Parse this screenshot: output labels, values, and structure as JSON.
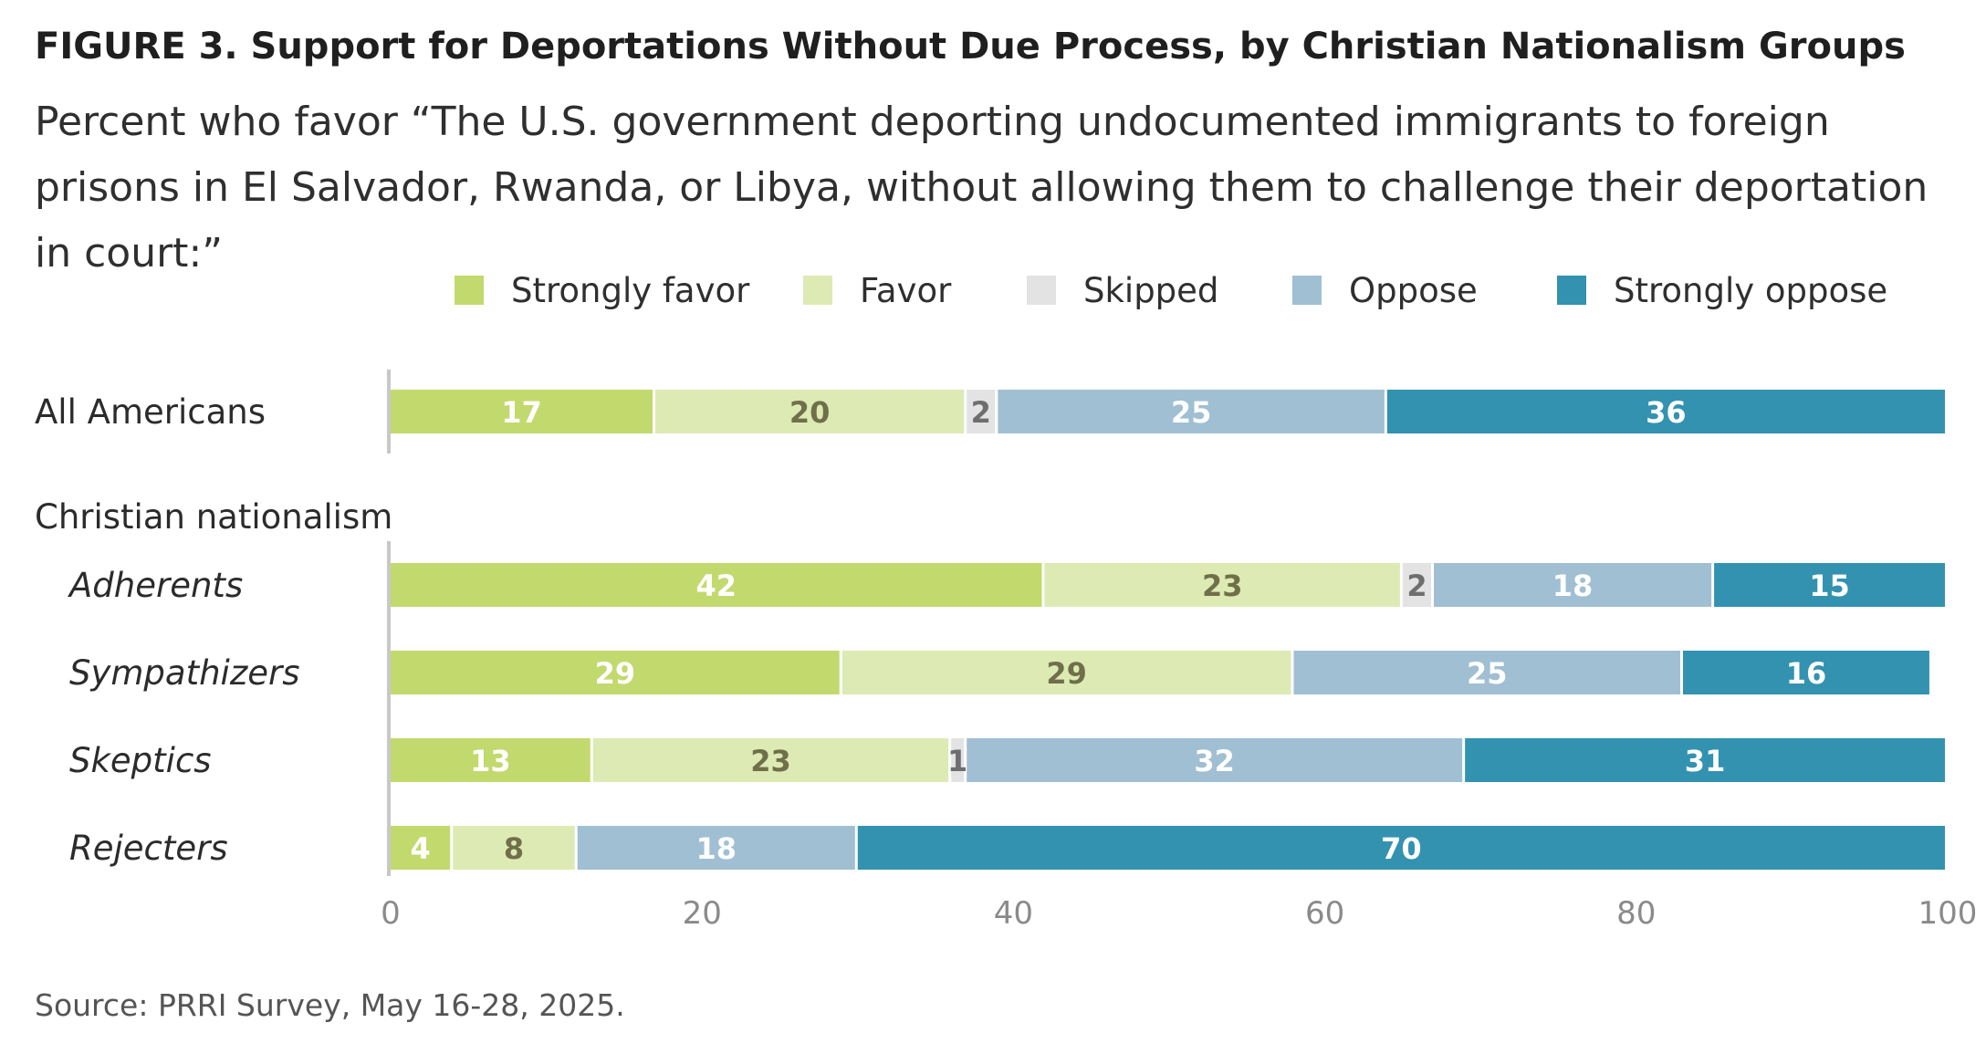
{
  "title": "FIGURE 3.  Support for Deportations Without Due Process, by Christian Nationalism Groups",
  "subtitle": "Percent who favor “The U.S. government deporting undocumented immigrants to foreign prisons in El Salvador, Rwanda, or Libya, without allowing them to challenge their deportation in court:”",
  "source": "Source: PRRI Survey, May 16-28, 2025.",
  "colors": {
    "strongly_favor": "#c2d96e",
    "favor": "#ddeab4",
    "skipped": "#e3e3e3",
    "oppose": "#a0bfd3",
    "strongly_oppose": "#3392b0",
    "axis": "#c8c8c8",
    "tick": "#8a8a8a"
  },
  "chart_data": {
    "type": "bar",
    "orientation": "horizontal",
    "stacked": true,
    "xlim": [
      0,
      100
    ],
    "xticks": [
      0,
      20,
      40,
      60,
      80,
      100
    ],
    "legend_position": "top",
    "grid": false,
    "group_label": "Christian nationalism",
    "categories": [
      "All Americans",
      "Adherents",
      "Sympathizers",
      "Skeptics",
      "Rejecters"
    ],
    "series": [
      {
        "key": "strongly_favor",
        "name": "Strongly favor",
        "values": [
          17,
          42,
          29,
          13,
          4
        ]
      },
      {
        "key": "favor",
        "name": "Favor",
        "values": [
          20,
          23,
          29,
          23,
          8
        ]
      },
      {
        "key": "skipped",
        "name": "Skipped",
        "values": [
          2,
          2,
          0,
          1,
          0
        ]
      },
      {
        "key": "oppose",
        "name": "Oppose",
        "values": [
          25,
          18,
          25,
          32,
          18
        ]
      },
      {
        "key": "strongly_oppose",
        "name": "Strongly oppose",
        "values": [
          36,
          15,
          16,
          31,
          70
        ]
      }
    ]
  }
}
